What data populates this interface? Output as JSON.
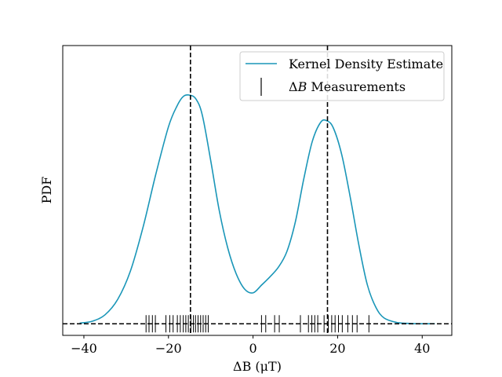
{
  "chart_data": {
    "type": "line",
    "xlabel": "ΔB (μT)",
    "ylabel": "PDF",
    "xlim": [
      -45,
      47
    ],
    "ylim": [
      -0.0018,
      0.0432
    ],
    "x_ticks": [
      -40,
      -20,
      0,
      20,
      40
    ],
    "x_tick_labels": [
      "−40",
      "−20",
      "0",
      "20",
      "40"
    ],
    "y_ticks_shown": false,
    "grid": false,
    "legend_position": "top-right",
    "colors": {
      "kde": "#1a96b8",
      "rug": "#000000",
      "reference_lines": "#000000"
    },
    "series": [
      {
        "name": "Kernel Density Estimate",
        "x": [
          -41,
          -38,
          -35,
          -32,
          -29,
          -26,
          -23,
          -20,
          -18,
          -16.5,
          -15,
          -13.5,
          -12,
          -10,
          -8,
          -6,
          -4,
          -2,
          0,
          2,
          4,
          6,
          8,
          10,
          12,
          14,
          16,
          17.5,
          19,
          21,
          23,
          25,
          27,
          29,
          31,
          34,
          37,
          40,
          43
        ],
        "y": [
          0.0001,
          0.0004,
          0.0014,
          0.0038,
          0.0082,
          0.015,
          0.0232,
          0.0306,
          0.0338,
          0.0353,
          0.0355,
          0.0349,
          0.0324,
          0.0253,
          0.0176,
          0.0118,
          0.0078,
          0.0054,
          0.0048,
          0.006,
          0.0073,
          0.0088,
          0.0112,
          0.0158,
          0.0225,
          0.0283,
          0.0313,
          0.0315,
          0.0304,
          0.0262,
          0.0196,
          0.0123,
          0.0061,
          0.0026,
          0.0009,
          0.0002,
          5e-05,
          1e-05,
          0.0
        ]
      },
      {
        "name": "ΔB Measurements",
        "type": "rug",
        "x": [
          -25.3,
          -24.6,
          -23.8,
          -23.1,
          -20.6,
          -19.7,
          -18.9,
          -17.9,
          -17.2,
          -16.5,
          -15.9,
          -15.3,
          -14.7,
          -14.1,
          -13.6,
          -13.0,
          -12.4,
          -11.8,
          -11.2,
          -10.6,
          2.0,
          3.0,
          5.1,
          6.2,
          11.2,
          13.1,
          13.9,
          14.6,
          15.3,
          16.8,
          17.8,
          18.6,
          19.4,
          20.2,
          21.1,
          22.4,
          23.5,
          24.6,
          27.4
        ]
      }
    ],
    "reference_lines": {
      "vertical_x": [
        -14.8,
        17.6
      ],
      "horizontal_y": [
        0
      ]
    }
  },
  "legend": {
    "kde_label": "Kernel Density Estimate",
    "rug_label_prefix": "Δ",
    "rug_label_var": "B",
    "rug_label_suffix": " Measurements"
  }
}
